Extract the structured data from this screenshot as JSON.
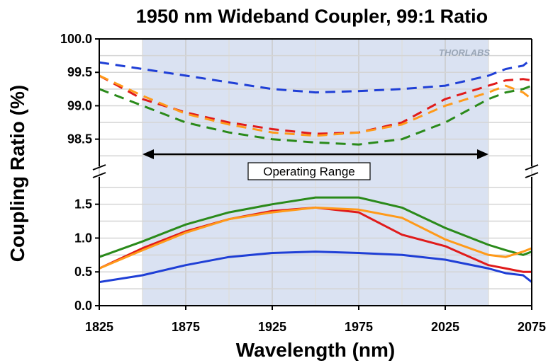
{
  "chart_data": {
    "type": "line",
    "title": "1950 nm Wideband Coupler, 99:1 Ratio",
    "xlabel": "Wavelength (nm)",
    "ylabel": "Coupling Ratio (%)",
    "watermark": "THORLABS",
    "annotation": "Operating Range",
    "xlim": [
      1825,
      2075
    ],
    "x_ticks": [
      "1825",
      "1875",
      "1925",
      "1975",
      "2025",
      "2075"
    ],
    "operating_range": [
      1850,
      2050
    ],
    "grid": true,
    "legend": "none",
    "upper_panel": {
      "ylim": [
        98.2,
        100.0
      ],
      "y_ticks": [
        "100.0",
        "99.5",
        "99.0",
        "98.5"
      ],
      "series": [
        {
          "color": "#1f3fd6",
          "style": "dashed",
          "x": [
            1825,
            1850,
            1875,
            1900,
            1925,
            1950,
            1975,
            2000,
            2025,
            2050,
            2060,
            2070,
            2075
          ],
          "y": [
            99.65,
            99.55,
            99.45,
            99.35,
            99.25,
            99.2,
            99.22,
            99.25,
            99.3,
            99.45,
            99.55,
            99.6,
            99.7
          ]
        },
        {
          "color": "#e01b1b",
          "style": "dashed",
          "x": [
            1825,
            1850,
            1875,
            1900,
            1925,
            1950,
            1975,
            2000,
            2025,
            2050,
            2060,
            2070,
            2075
          ],
          "y": [
            99.45,
            99.1,
            98.9,
            98.75,
            98.65,
            98.58,
            98.6,
            98.75,
            99.1,
            99.3,
            99.38,
            99.4,
            99.38
          ]
        },
        {
          "color": "#ff9a1a",
          "style": "dashed",
          "x": [
            1825,
            1850,
            1875,
            1900,
            1925,
            1950,
            1975,
            2000,
            2025,
            2050,
            2060,
            2070,
            2075
          ],
          "y": [
            99.45,
            99.15,
            98.88,
            98.72,
            98.6,
            98.55,
            98.6,
            98.72,
            99.0,
            99.2,
            99.3,
            99.2,
            99.1
          ]
        },
        {
          "color": "#2a8a1a",
          "style": "dashed",
          "x": [
            1825,
            1850,
            1875,
            1900,
            1925,
            1950,
            1975,
            2000,
            2025,
            2050,
            2060,
            2070,
            2075
          ],
          "y": [
            99.25,
            99.0,
            98.75,
            98.6,
            98.5,
            98.45,
            98.42,
            98.5,
            98.75,
            99.1,
            99.2,
            99.25,
            99.3
          ]
        }
      ]
    },
    "lower_panel": {
      "ylim": [
        0.0,
        1.8
      ],
      "y_ticks": [
        "1.5",
        "1.0",
        "0.5",
        "0.0"
      ],
      "series": [
        {
          "color": "#2a8a1a",
          "style": "solid",
          "x": [
            1825,
            1850,
            1875,
            1900,
            1925,
            1950,
            1975,
            2000,
            2025,
            2050,
            2060,
            2070,
            2075
          ],
          "y": [
            0.72,
            0.95,
            1.2,
            1.38,
            1.5,
            1.6,
            1.6,
            1.45,
            1.15,
            0.9,
            0.82,
            0.75,
            0.8
          ]
        },
        {
          "color": "#e01b1b",
          "style": "solid",
          "x": [
            1825,
            1850,
            1875,
            1900,
            1925,
            1950,
            1975,
            2000,
            2025,
            2050,
            2060,
            2070,
            2075
          ],
          "y": [
            0.55,
            0.85,
            1.1,
            1.28,
            1.4,
            1.45,
            1.38,
            1.05,
            0.88,
            0.6,
            0.55,
            0.5,
            0.5
          ]
        },
        {
          "color": "#ff9a1a",
          "style": "solid",
          "x": [
            1825,
            1850,
            1875,
            1900,
            1925,
            1950,
            1975,
            2000,
            2025,
            2050,
            2060,
            2070,
            2075
          ],
          "y": [
            0.55,
            0.82,
            1.08,
            1.28,
            1.38,
            1.45,
            1.42,
            1.3,
            0.98,
            0.75,
            0.72,
            0.8,
            0.85
          ]
        },
        {
          "color": "#1f3fd6",
          "style": "solid",
          "x": [
            1825,
            1850,
            1875,
            1900,
            1925,
            1950,
            1975,
            2000,
            2025,
            2050,
            2060,
            2070,
            2075
          ],
          "y": [
            0.35,
            0.45,
            0.6,
            0.72,
            0.78,
            0.8,
            0.78,
            0.75,
            0.68,
            0.55,
            0.48,
            0.45,
            0.35
          ]
        }
      ]
    }
  }
}
